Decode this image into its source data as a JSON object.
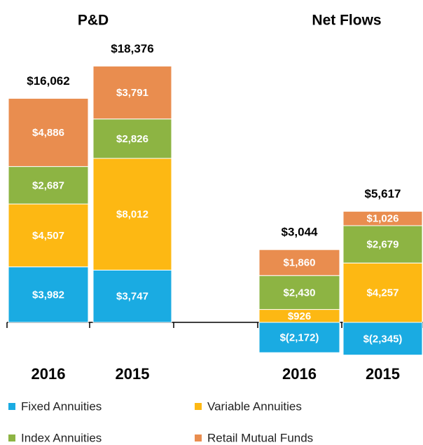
{
  "chart_data": {
    "type": "bar",
    "stacked": true,
    "groups": [
      {
        "title": "P&D",
        "categories": [
          "2016",
          "2015"
        ]
      },
      {
        "title": "Net Flows",
        "categories": [
          "2016",
          "2015"
        ]
      }
    ],
    "series": [
      {
        "name": "Fixed Annuities",
        "color": "#1aabe2",
        "values": [
          3982,
          3747,
          -2172,
          -2345
        ],
        "value_labels": [
          "$3,982",
          "$3,747",
          "$(2,172)",
          "$(2,345)"
        ]
      },
      {
        "name": "Variable Annuities",
        "color": "#fdb813",
        "values": [
          4507,
          8012,
          926,
          4257
        ],
        "value_labels": [
          "$4,507",
          "$8,012",
          "$926",
          "$4,257"
        ]
      },
      {
        "name": "Index Annuities",
        "color": "#8db443",
        "values": [
          2687,
          2826,
          2430,
          2679
        ],
        "value_labels": [
          "$2,687",
          "$2,826",
          "$2,430",
          "$2,679"
        ]
      },
      {
        "name": "Retail Mutual Funds",
        "color": "#e98d4f",
        "values": [
          4886,
          3791,
          1860,
          1026
        ],
        "value_labels": [
          "$4,886",
          "$3,791",
          "$1,860",
          "$1,026"
        ]
      }
    ],
    "totals": [
      16062,
      18376,
      3044,
      5617
    ],
    "total_labels": [
      "$16,062",
      "$18,376",
      "$3,044",
      "$5,617"
    ]
  }
}
